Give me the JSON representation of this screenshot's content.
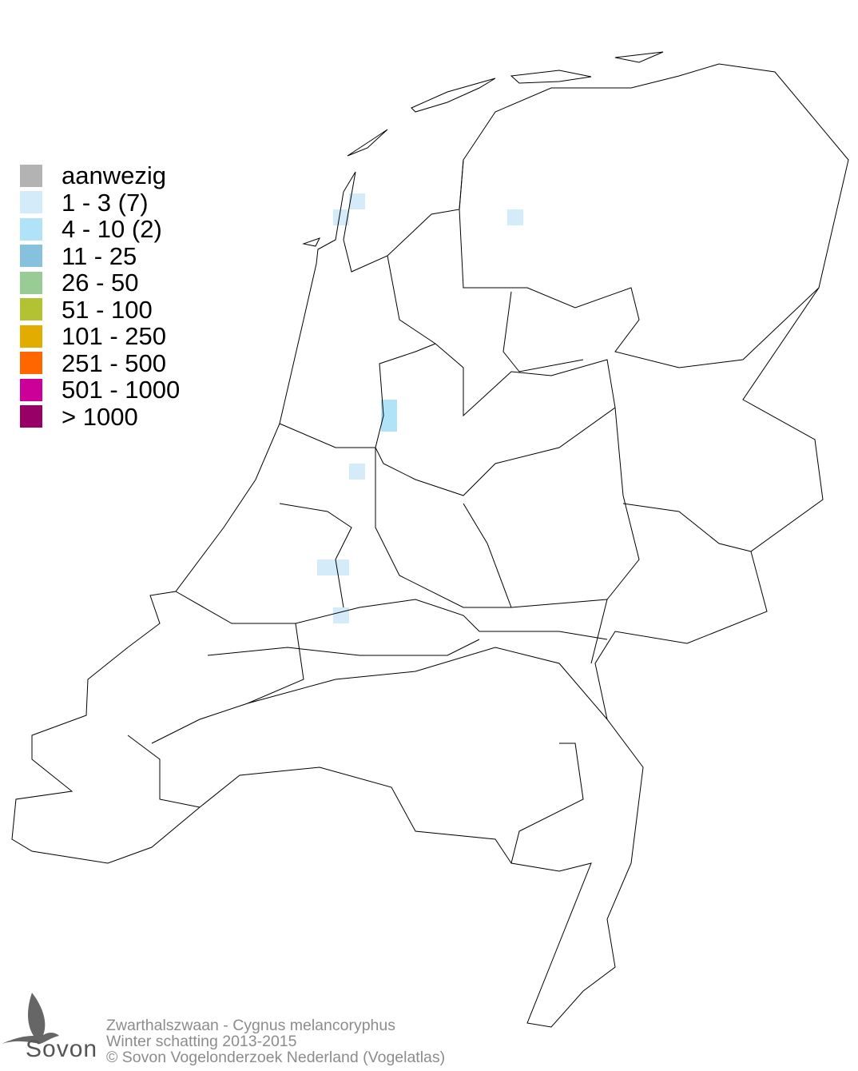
{
  "legend": {
    "items": [
      {
        "label": "aanwezig",
        "color": "#b3b3b3"
      },
      {
        "label": "1 - 3 (7)",
        "color": "#d4ecfa"
      },
      {
        "label": "4 - 10 (2)",
        "color": "#b0e2f8"
      },
      {
        "label": "11 - 25",
        "color": "#86c2de"
      },
      {
        "label": "26 - 50",
        "color": "#99cc95"
      },
      {
        "label": "51 - 100",
        "color": "#b2c233"
      },
      {
        "label": "101 - 250",
        "color": "#e3ac00"
      },
      {
        "label": "251 - 500",
        "color": "#ff6600"
      },
      {
        "label": "501 - 1000",
        "color": "#cc0099"
      },
      {
        "label": "> 1000",
        "color": "#990066"
      }
    ]
  },
  "footer": {
    "species": "Zwarthalszwaan - Cygnus melancoryphus",
    "period": "Winter schatting 2013-2015",
    "copyright": "© Sovon Vogelonderzoek Nederland (Vogelatlas)"
  },
  "logo": {
    "text": "Sovon",
    "icon": "swallow-icon"
  },
  "map": {
    "region": "Netherlands",
    "outline_color": "#000000",
    "background": "#ffffff"
  }
}
